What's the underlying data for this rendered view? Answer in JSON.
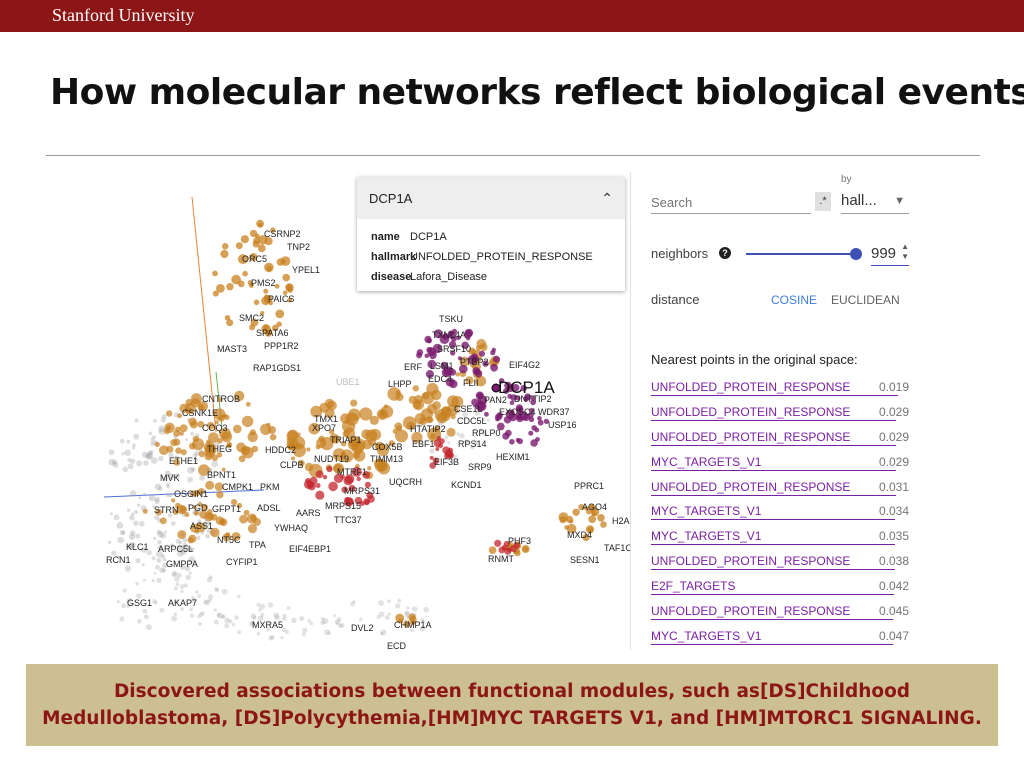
{
  "header": {
    "brand": "Stanford University"
  },
  "slide": {
    "title": "How molecular networks reflect biological events?"
  },
  "point_card": {
    "title": "DCP1A",
    "fields": [
      {
        "key": "name",
        "value": "DCP1A"
      },
      {
        "key": "hallmark",
        "value": "UNFOLDED_PROTEIN_RESPONSE"
      },
      {
        "key": "disease",
        "value": "Lafora_Disease"
      }
    ]
  },
  "inspector": {
    "search_placeholder": "Search",
    "regex_label": ".*",
    "by_label": "by",
    "by_value": "hall...",
    "neighbors_label": "neighbors",
    "neighbors_value": "999",
    "neighbors_fraction": 1.0,
    "distance_label": "distance",
    "distance_options": [
      "COSINE",
      "EUCLIDEAN"
    ],
    "distance_selected": "COSINE",
    "nearest_heading": "Nearest points in the original space:",
    "nearest": [
      {
        "name": "UNFOLDED_PROTEIN_RESPONSE",
        "value": "0.019"
      },
      {
        "name": "UNFOLDED_PROTEIN_RESPONSE",
        "value": "0.029"
      },
      {
        "name": "UNFOLDED_PROTEIN_RESPONSE",
        "value": "0.029"
      },
      {
        "name": "MYC_TARGETS_V1",
        "value": "0.029"
      },
      {
        "name": "UNFOLDED_PROTEIN_RESPONSE",
        "value": "0.031"
      },
      {
        "name": "MYC_TARGETS_V1",
        "value": "0.034"
      },
      {
        "name": "MYC_TARGETS_V1",
        "value": "0.035"
      },
      {
        "name": "UNFOLDED_PROTEIN_RESPONSE",
        "value": "0.038"
      },
      {
        "name": "E2F_TARGETS",
        "value": "0.042"
      },
      {
        "name": "UNFOLDED_PROTEIN_RESPONSE",
        "value": "0.045"
      },
      {
        "name": "MYC_TARGETS_V1",
        "value": "0.047"
      }
    ]
  },
  "projection": {
    "highlight_label": "DCP1A",
    "gene_labels": [
      "CSRNP2",
      "TNP2",
      "ORC5",
      "YPEL1",
      "PMS2",
      "PAICS",
      "SMC2",
      "SPATA6",
      "PPP1R2",
      "MAST3",
      "RAP1GDS1",
      "CNTROB",
      "CSNK1E",
      "COQ3",
      "XPO7",
      "TMX1",
      "THEG",
      "HDDC2",
      "ETHE1",
      "CLPB",
      "TRIAP1",
      "NUDT19",
      "COX5B",
      "TIMM13",
      "UQCRH",
      "BPNT1",
      "MVK",
      "PKM",
      "CMPK1",
      "OSGIN1",
      "PGD",
      "GFPT1",
      "ADSL",
      "AARS",
      "MRPS31",
      "MRPS15",
      "TTC37",
      "YWHAQ",
      "STRN",
      "ASS1",
      "NT5C",
      "TPA",
      "EIF4EBP1",
      "KLC1",
      "ARPC5L",
      "GMPPA",
      "CYFIP1",
      "RCN1",
      "GSG1",
      "AKAP7",
      "MXRA5",
      "DVL2",
      "CHMP1A",
      "ECD",
      "TSKU",
      "TXNL4A",
      "SRSF10",
      "LSM1",
      "PTBP2",
      "EIF4G2",
      "LHPP",
      "ERF",
      "EDC4",
      "FLII",
      "PAN2",
      "DNTTIP2",
      "EXOSC4",
      "WDR37",
      "USP16",
      "HTATIP2",
      "CSE1L",
      "CDC5L",
      "RPLP0",
      "EBF1",
      "RPS14",
      "HEXIM1",
      "EIF3B",
      "SRP9",
      "KCND1",
      "PPRC1",
      "AGO4",
      "MXD4",
      "H2A",
      "TAF1C",
      "SESN1",
      "PHF3",
      "RNMT",
      "MTRF1",
      "UBE1"
    ]
  },
  "caption": {
    "line1": "Discovered associations between functional modules, such as[DS]Childhood",
    "line2": "Medulloblastoma, [DS]Polycythemia,[HM]MYC TARGETS V1, and [HM]MTORC1 SIGNALING."
  },
  "colors": {
    "brand_red": "#8c1515",
    "caption_bg": "#ccbf91",
    "accent_blue": "#3f51b5",
    "list_purple": "#7b1fa2",
    "point_orange": "#c8801e",
    "point_purple": "#7a1a6e",
    "point_red": "#c4262e"
  }
}
